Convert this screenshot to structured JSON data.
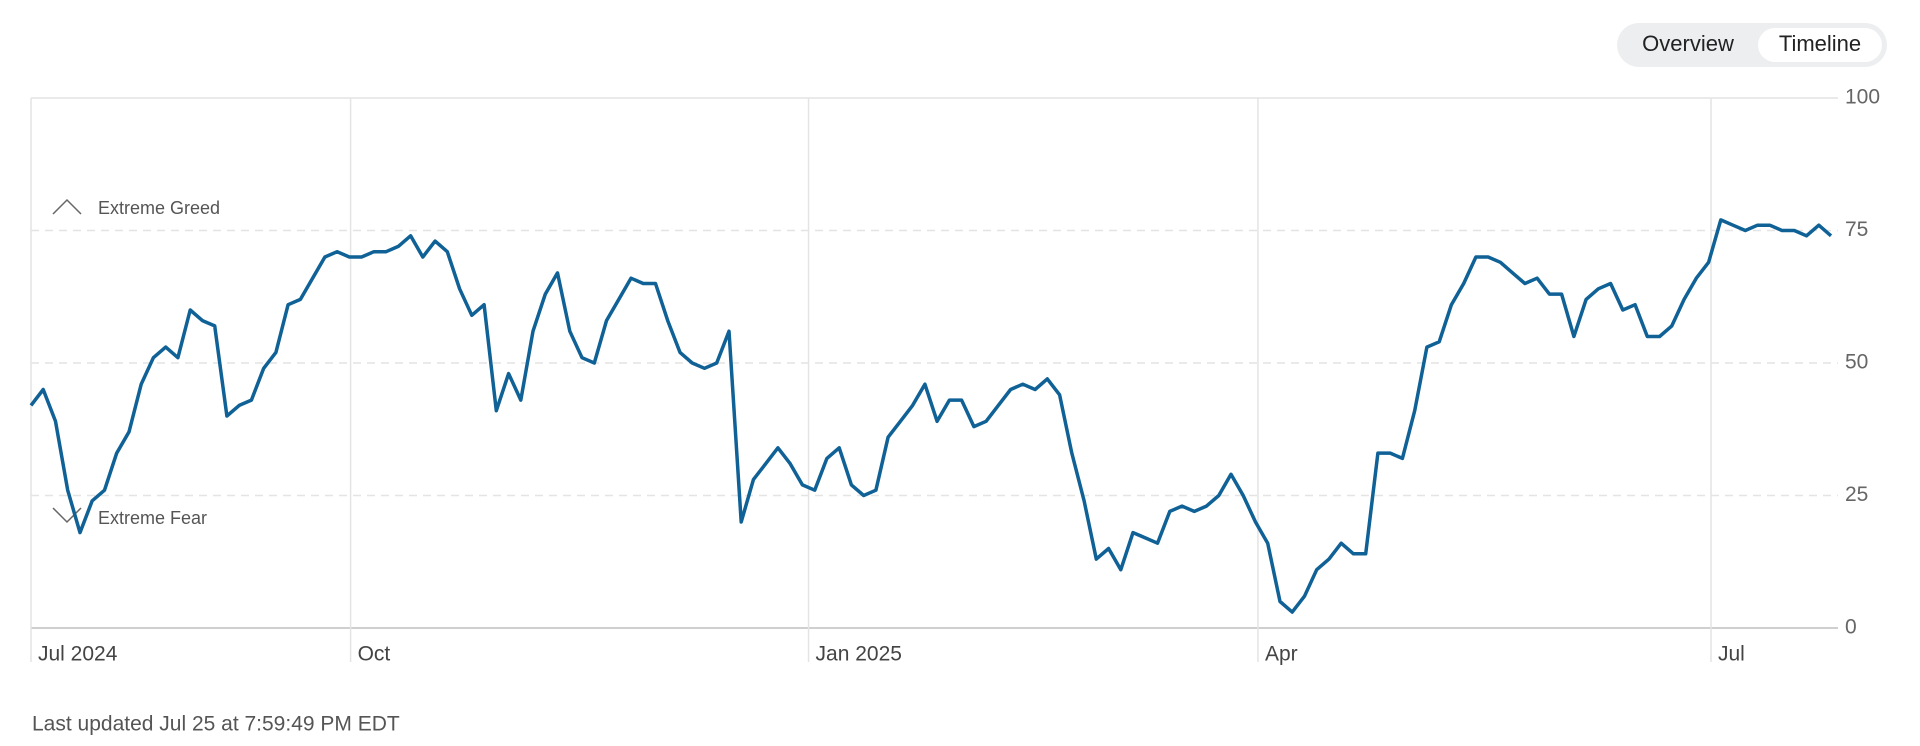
{
  "chart_data": {
    "type": "line",
    "series": [
      {
        "name": null,
        "color": "#0f6196",
        "values": [
          42,
          45,
          39,
          26,
          18,
          24,
          26,
          33,
          37,
          46,
          51,
          53,
          51,
          60,
          58,
          57,
          40,
          42,
          43,
          49,
          52,
          61,
          62,
          66,
          70,
          71,
          70,
          70,
          71,
          71,
          72,
          74,
          70,
          73,
          71,
          64,
          59,
          61,
          41,
          48,
          43,
          56,
          63,
          67,
          56,
          51,
          50,
          58,
          62,
          66,
          65,
          65,
          58,
          52,
          50,
          49,
          50,
          56,
          20,
          28,
          31,
          34,
          31,
          27,
          26,
          32,
          34,
          27,
          25,
          26,
          36,
          39,
          42,
          46,
          39,
          43,
          43,
          38,
          39,
          42,
          45,
          46,
          45,
          47,
          44,
          33,
          24,
          13,
          15,
          11,
          18,
          17,
          16,
          22,
          23,
          22,
          23,
          25,
          29,
          25,
          20,
          16,
          5,
          3,
          6,
          11,
          13,
          16,
          14,
          14,
          33,
          33,
          32,
          41,
          53,
          54,
          61,
          65,
          70,
          70,
          69,
          67,
          65,
          66,
          63,
          63,
          55,
          62,
          64,
          65,
          60,
          61,
          55,
          55,
          57,
          62,
          66,
          69,
          77,
          76,
          75,
          76,
          76,
          75,
          75,
          74,
          76,
          74
        ]
      }
    ],
    "xlim": [
      0,
      147
    ],
    "xticks": [
      {
        "value": 0,
        "label": "Jul 2024"
      },
      {
        "value": 26.1,
        "label": "Oct"
      },
      {
        "value": 63.5,
        "label": "Jan 2025"
      },
      {
        "value": 100.2,
        "label": "Apr"
      },
      {
        "value": 137.2,
        "label": "Jul"
      }
    ],
    "ylim": [
      0,
      100
    ],
    "yticks": [
      0,
      25,
      50,
      75,
      100
    ],
    "annotations": [
      "Extreme Greed",
      "Extreme Fear"
    ]
  },
  "controls": [
    "Overview",
    "Timeline"
  ],
  "footer": "Last updated Jul 25 at 7:59:49 PM EDT"
}
